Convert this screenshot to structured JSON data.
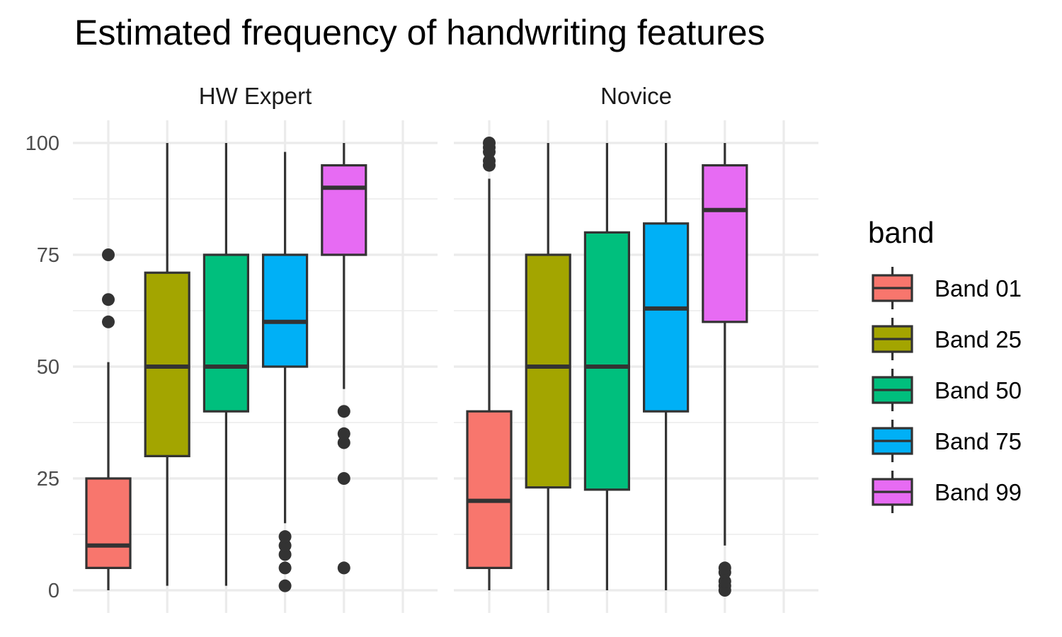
{
  "chart_data": {
    "type": "boxplot",
    "title": "Estimated frequency of handwriting features",
    "xlabel": "",
    "ylabel": "",
    "ylim": [
      0,
      100
    ],
    "yticks": [
      0,
      25,
      50,
      75,
      100
    ],
    "grid": true,
    "legend": {
      "title": "band",
      "placement": "right",
      "entries": [
        "Band 01",
        "Band 25",
        "Band 50",
        "Band 75",
        "Band 99"
      ]
    },
    "colors": {
      "Band 01": "#F8766D",
      "Band 25": "#A3A500",
      "Band 50": "#00BF7D",
      "Band 75": "#00B0F6",
      "Band 99": "#E76BF3"
    },
    "facets": [
      {
        "name": "HW Expert",
        "boxes": [
          {
            "band": "Band 01",
            "lower_whisker": 0,
            "q1": 5,
            "median": 10,
            "q3": 25,
            "upper_whisker": 51,
            "outliers": [
              60,
              65,
              75
            ]
          },
          {
            "band": "Band 25",
            "lower_whisker": 1,
            "q1": 30,
            "median": 50,
            "q3": 71,
            "upper_whisker": 100,
            "outliers": []
          },
          {
            "band": "Band 50",
            "lower_whisker": 1,
            "q1": 40,
            "median": 50,
            "q3": 75,
            "upper_whisker": 100,
            "outliers": []
          },
          {
            "band": "Band 75",
            "lower_whisker": 15,
            "q1": 50,
            "median": 60,
            "q3": 75,
            "upper_whisker": 98,
            "outliers": [
              1,
              5,
              8,
              10,
              12
            ]
          },
          {
            "band": "Band 99",
            "lower_whisker": 45,
            "q1": 75,
            "median": 90,
            "q3": 95,
            "upper_whisker": 100,
            "outliers": [
              5,
              25,
              33,
              35,
              40
            ]
          }
        ]
      },
      {
        "name": "Novice",
        "boxes": [
          {
            "band": "Band 01",
            "lower_whisker": 0,
            "q1": 5,
            "median": 20,
            "q3": 40,
            "upper_whisker": 92,
            "outliers": [
              95,
              96,
              98,
              99,
              100
            ]
          },
          {
            "band": "Band 25",
            "lower_whisker": 0,
            "q1": 23,
            "median": 50,
            "q3": 75,
            "upper_whisker": 100,
            "outliers": []
          },
          {
            "band": "Band 50",
            "lower_whisker": 0,
            "q1": 22.5,
            "median": 50,
            "q3": 80,
            "upper_whisker": 100,
            "outliers": []
          },
          {
            "band": "Band 75",
            "lower_whisker": 0,
            "q1": 40,
            "median": 63,
            "q3": 82,
            "upper_whisker": 100,
            "outliers": []
          },
          {
            "band": "Band 99",
            "lower_whisker": 10,
            "q1": 60,
            "median": 85,
            "q3": 95,
            "upper_whisker": 100,
            "outliers": [
              0,
              1,
              2,
              4,
              5
            ]
          }
        ]
      }
    ]
  }
}
